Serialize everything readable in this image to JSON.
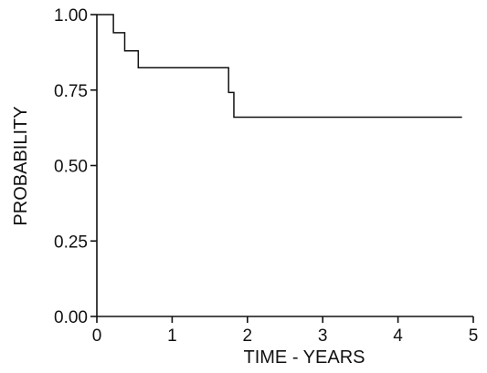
{
  "chart_data": {
    "type": "line",
    "step": true,
    "title": "",
    "xlabel": "TIME - YEARS",
    "ylabel": "PROBABILITY",
    "xlim": [
      0,
      5
    ],
    "ylim": [
      0,
      1
    ],
    "x_ticks": [
      0,
      1,
      2,
      3,
      4,
      5
    ],
    "x_tick_labels": [
      "0",
      "1",
      "2",
      "3",
      "4",
      "5"
    ],
    "y_ticks": [
      0,
      0.25,
      0.5,
      0.75,
      1.0
    ],
    "y_tick_labels": [
      "0.00",
      "0.25",
      "0.50",
      "0.75",
      "1.00"
    ],
    "grid": false,
    "legend": "none",
    "line_color": "#111111",
    "series": [
      {
        "x": [
          0,
          0.22,
          0.37,
          0.55,
          1.75,
          1.82,
          4.85
        ],
        "y": [
          1.0,
          0.94,
          0.88,
          0.824,
          0.742,
          0.66,
          0.66
        ]
      }
    ]
  }
}
